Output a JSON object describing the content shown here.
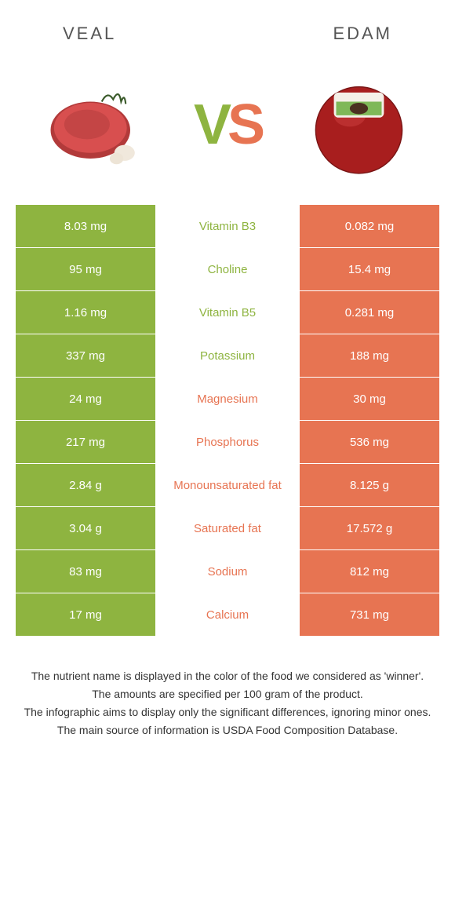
{
  "colors": {
    "green": "#8eb440",
    "orange": "#e77452",
    "green_text": "#8eb440",
    "orange_text": "#e77452"
  },
  "header": {
    "left_title": "VEAL",
    "right_title": "EDAM"
  },
  "vs": {
    "v": "V",
    "s": "S"
  },
  "rows": [
    {
      "left": "8.03 mg",
      "mid": "Vitamin B3",
      "right": "0.082 mg",
      "winner": "left"
    },
    {
      "left": "95 mg",
      "mid": "Choline",
      "right": "15.4 mg",
      "winner": "left"
    },
    {
      "left": "1.16 mg",
      "mid": "Vitamin B5",
      "right": "0.281 mg",
      "winner": "left"
    },
    {
      "left": "337 mg",
      "mid": "Potassium",
      "right": "188 mg",
      "winner": "left"
    },
    {
      "left": "24 mg",
      "mid": "Magnesium",
      "right": "30 mg",
      "winner": "right"
    },
    {
      "left": "217 mg",
      "mid": "Phosphorus",
      "right": "536 mg",
      "winner": "right"
    },
    {
      "left": "2.84 g",
      "mid": "Monounsaturated fat",
      "right": "8.125 g",
      "winner": "right"
    },
    {
      "left": "3.04 g",
      "mid": "Saturated fat",
      "right": "17.572 g",
      "winner": "right"
    },
    {
      "left": "83 mg",
      "mid": "Sodium",
      "right": "812 mg",
      "winner": "right"
    },
    {
      "left": "17 mg",
      "mid": "Calcium",
      "right": "731 mg",
      "winner": "right"
    }
  ],
  "footer": {
    "line1": "The nutrient name is displayed in the color of the food we considered as 'winner'.",
    "line2": "The amounts are specified per 100 gram of the product.",
    "line3": "The infographic aims to display only the significant differences, ignoring minor ones.",
    "line4": "The main source of information is USDA Food Composition Database."
  }
}
